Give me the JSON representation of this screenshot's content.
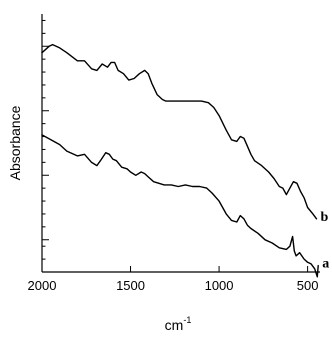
{
  "chart_data": {
    "type": "line",
    "xlabel": "cm",
    "xlabel_superscript": "-1",
    "ylabel": "Absorbance",
    "xlim": [
      2000,
      430
    ],
    "ylim": [
      0,
      16
    ],
    "x_reversed": true,
    "y_tick_labels_shown": false,
    "x_ticks": [
      {
        "value": 2000,
        "label": "2000"
      },
      {
        "value": 1500,
        "label": "1500"
      },
      {
        "value": 1000,
        "label": "1000"
      },
      {
        "value": 500,
        "label": "500"
      }
    ],
    "y_major_ticks": [
      2,
      6,
      10,
      14
    ],
    "y_minor_ticks": [
      0.8,
      1.6,
      2.8,
      3.6,
      4.4,
      5.2,
      6.8,
      7.6,
      8.4,
      9.2,
      10.8,
      11.6,
      12.4,
      13.2,
      14.8,
      15.6
    ],
    "grid": false,
    "legend": "none",
    "series": [
      {
        "name": "b",
        "x": [
          2000,
          1960,
          1940,
          1900,
          1860,
          1800,
          1760,
          1720,
          1690,
          1660,
          1630,
          1610,
          1590,
          1570,
          1540,
          1510,
          1480,
          1450,
          1420,
          1400,
          1380,
          1350,
          1320,
          1300,
          1250,
          1200,
          1150,
          1100,
          1060,
          1030,
          1000,
          960,
          930,
          900,
          880,
          860,
          840,
          820,
          800,
          760,
          720,
          690,
          660,
          640,
          620,
          600,
          580,
          560,
          540,
          520,
          500,
          470,
          450
        ],
        "y": [
          13.6,
          14.0,
          14.1,
          13.9,
          13.6,
          13.1,
          13.1,
          12.6,
          12.5,
          12.9,
          12.7,
          13.0,
          13.0,
          12.5,
          12.3,
          11.9,
          12.0,
          12.3,
          12.5,
          12.3,
          11.7,
          11.0,
          10.7,
          10.6,
          10.6,
          10.6,
          10.6,
          10.6,
          10.5,
          10.2,
          9.7,
          8.8,
          8.2,
          8.1,
          8.4,
          8.3,
          7.8,
          7.3,
          6.9,
          6.6,
          6.2,
          5.8,
          5.3,
          5.2,
          4.8,
          5.2,
          5.6,
          5.5,
          5.0,
          4.6,
          4.0,
          3.6,
          3.3
        ]
      },
      {
        "name": "a",
        "x": [
          2000,
          1950,
          1900,
          1860,
          1800,
          1760,
          1720,
          1690,
          1670,
          1640,
          1620,
          1600,
          1580,
          1550,
          1520,
          1500,
          1470,
          1440,
          1420,
          1400,
          1370,
          1340,
          1310,
          1270,
          1230,
          1190,
          1150,
          1110,
          1070,
          1040,
          1000,
          960,
          930,
          900,
          880,
          860,
          840,
          820,
          780,
          740,
          700,
          660,
          620,
          600,
          585,
          575,
          565,
          545,
          520,
          500,
          480,
          460,
          445,
          440
        ],
        "y": [
          8.5,
          8.2,
          7.9,
          7.5,
          7.2,
          7.3,
          6.8,
          6.6,
          6.9,
          7.4,
          7.3,
          7.0,
          6.9,
          6.5,
          6.4,
          6.2,
          6.0,
          6.2,
          6.1,
          5.9,
          5.6,
          5.5,
          5.4,
          5.4,
          5.3,
          5.4,
          5.3,
          5.3,
          5.2,
          4.9,
          4.4,
          3.6,
          3.2,
          3.1,
          3.5,
          3.3,
          2.9,
          2.7,
          2.4,
          2.0,
          1.8,
          1.5,
          1.4,
          1.6,
          2.2,
          1.3,
          1.0,
          1.2,
          0.8,
          0.6,
          0.5,
          0.2,
          -0.3,
          0.4
        ]
      }
    ],
    "series_labels": [
      {
        "text": "b",
        "series": "b"
      },
      {
        "text": "a",
        "series": "a"
      }
    ]
  }
}
